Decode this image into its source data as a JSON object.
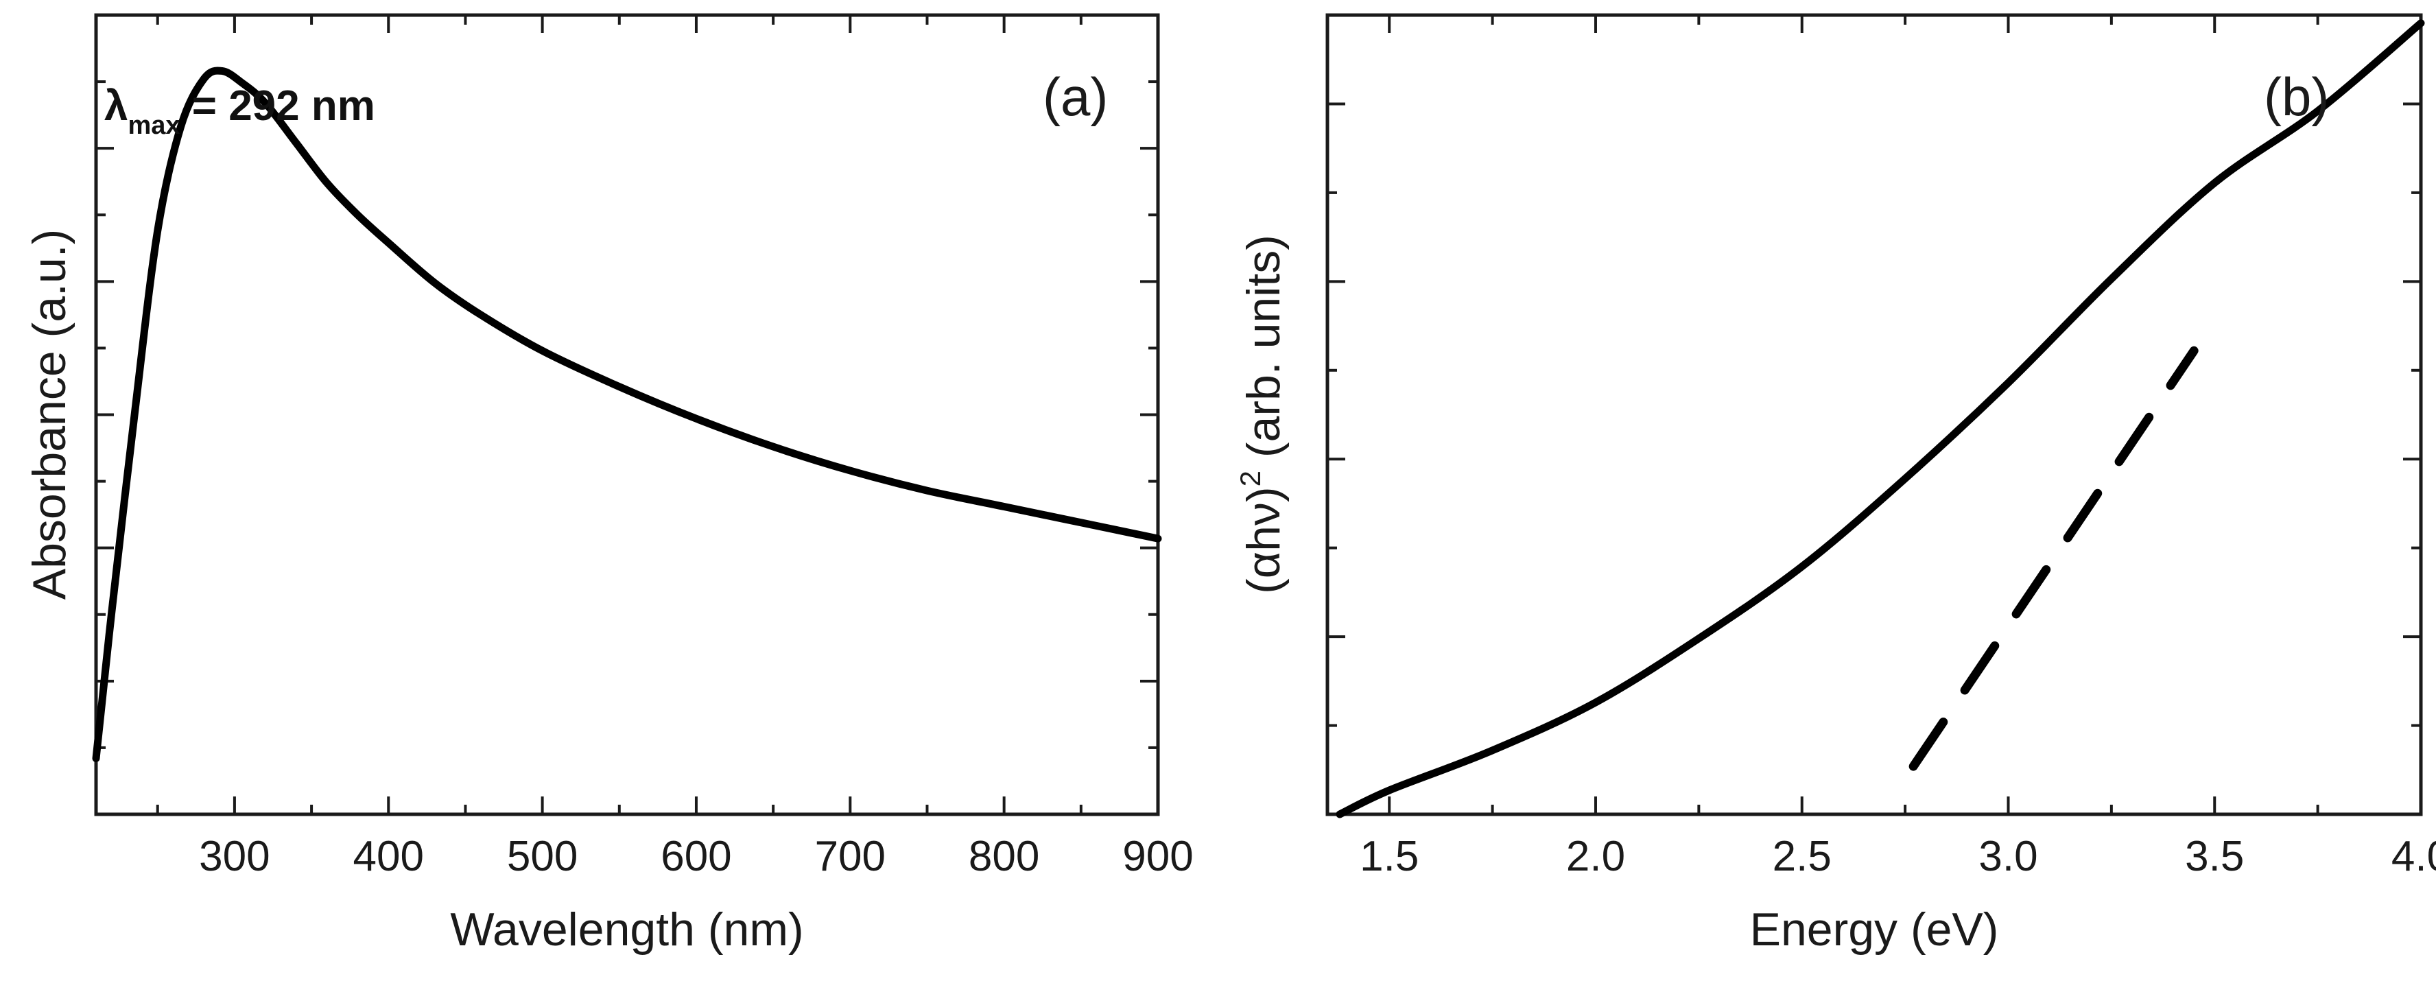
{
  "colors": {
    "line": "#000000",
    "axis": "#1a1a1a",
    "background": "#ffffff"
  },
  "chart_data": [
    {
      "id": "a",
      "type": "line",
      "panel_label": "(a)",
      "xlabel": "Wavelength (nm)",
      "ylabel": "Absorbance (a.u.)",
      "xlim": [
        210,
        900
      ],
      "ylim": [
        0,
        1
      ],
      "xticks": [
        300,
        400,
        500,
        600,
        700,
        800,
        900
      ],
      "xtick_labels": [
        "300",
        "400",
        "500",
        "600",
        "700",
        "800",
        "900"
      ],
      "y_tick_labels_shown": false,
      "annotation": {
        "symbol": "λ",
        "subscript": "max",
        "text": " = 292 nm",
        "x": 292
      },
      "series": [
        {
          "name": "Absorbance",
          "x": [
            210,
            220,
            235,
            250,
            265,
            280,
            292,
            305,
            320,
            340,
            360,
            380,
            400,
            430,
            460,
            500,
            550,
            600,
            650,
            700,
            750,
            800,
            850,
            900
          ],
          "y": [
            0.07,
            0.25,
            0.5,
            0.73,
            0.86,
            0.92,
            0.93,
            0.915,
            0.89,
            0.84,
            0.79,
            0.75,
            0.715,
            0.665,
            0.625,
            0.58,
            0.535,
            0.495,
            0.46,
            0.43,
            0.405,
            0.385,
            0.365,
            0.345
          ]
        }
      ]
    },
    {
      "id": "b",
      "type": "line",
      "panel_label": "(b)",
      "xlabel": "Energy (eV)",
      "ylabel_parts": {
        "open": "(",
        "alpha": "α",
        "h": "h",
        "nu": "ν",
        "close": ")",
        "sup": "2",
        "rest": " (arb. units)"
      },
      "xlim": [
        1.35,
        4.0
      ],
      "ylim": [
        0,
        1
      ],
      "xticks": [
        1.5,
        2.0,
        2.5,
        3.0,
        3.5,
        4.0
      ],
      "xtick_labels": [
        "1.5",
        "2.0",
        "2.5",
        "3.0",
        "3.5",
        "4.0"
      ],
      "y_tick_labels_shown": false,
      "series": [
        {
          "name": "(αhν)^2",
          "x": [
            1.38,
            1.5,
            1.75,
            2.0,
            2.25,
            2.5,
            2.75,
            3.0,
            3.25,
            3.5,
            3.75,
            4.0
          ],
          "y": [
            0.0,
            0.03,
            0.08,
            0.14,
            0.22,
            0.31,
            0.42,
            0.54,
            0.67,
            0.79,
            0.88,
            0.99
          ]
        }
      ],
      "fit_line": {
        "style": "dashed",
        "x": [
          2.77,
          3.45
        ],
        "y": [
          0.06,
          0.58
        ]
      }
    }
  ]
}
